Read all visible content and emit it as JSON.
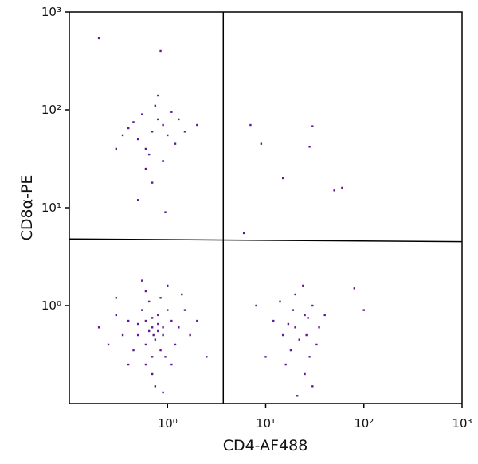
{
  "chart_data": {
    "type": "scatter",
    "x_label": "CD4-AF488",
    "y_label": "CD8α-PE",
    "log_x": true,
    "log_y": true,
    "xlim": [
      0.1,
      1000
    ],
    "ylim": [
      0.1,
      1000
    ],
    "xticks": [
      {
        "value": 1,
        "label": "10⁰"
      },
      {
        "value": 10,
        "label": "10¹"
      },
      {
        "value": 100,
        "label": "10²"
      },
      {
        "value": 1000,
        "label": "10³"
      }
    ],
    "yticks": [
      {
        "value": 1,
        "label": "10⁰"
      },
      {
        "value": 10,
        "label": "10¹"
      },
      {
        "value": 100,
        "label": "10²"
      },
      {
        "value": 1000,
        "label": "10³"
      }
    ],
    "color": "#5e1a96",
    "gates": {
      "x": 3.7,
      "y_left": 4.8,
      "y_right": 4.5
    },
    "x": [
      0.7,
      0.5,
      0.8,
      0.6,
      0.9,
      1.1,
      0.4,
      0.7,
      0.55,
      0.75,
      1.3,
      0.35,
      0.65,
      0.85,
      0.6,
      1.0,
      0.45,
      0.8,
      0.7,
      1.2,
      0.5,
      0.95,
      0.3,
      1.5,
      0.6,
      0.85,
      0.4,
      0.7,
      1.1,
      1.7,
      0.25,
      2.0,
      0.55,
      1.0,
      0.75,
      0.9,
      0.3,
      2.5,
      0.2,
      1.4,
      0.65,
      0.8,
      0.6,
      0.72,
      0.9,
      0.7,
      0.5,
      0.9,
      0.6,
      0.8,
      1.0,
      0.4,
      1.2,
      0.65,
      0.55,
      0.75,
      0.35,
      1.5,
      0.9,
      0.45,
      1.1,
      0.8,
      0.3,
      0.6,
      1.3,
      2.0,
      0.7,
      0.5,
      0.95,
      0.2,
      0.85,
      20,
      25,
      15,
      30,
      18,
      22,
      28,
      12,
      35,
      20,
      25,
      16,
      30,
      24,
      14,
      19,
      26,
      33,
      10,
      40,
      8,
      21,
      17,
      27,
      7,
      9,
      15,
      30,
      60,
      28,
      100,
      80,
      6,
      50
    ],
    "values": [
      0.6,
      0.5,
      0.8,
      0.4,
      0.5,
      0.7,
      0.7,
      0.3,
      0.9,
      0.45,
      0.6,
      0.5,
      1.1,
      0.35,
      0.25,
      0.9,
      0.35,
      0.55,
      0.75,
      0.4,
      0.65,
      0.3,
      0.8,
      0.9,
      1.4,
      1.2,
      0.25,
      0.2,
      0.25,
      0.5,
      0.4,
      0.7,
      1.8,
      1.6,
      0.15,
      0.13,
      1.2,
      0.3,
      0.6,
      1.3,
      0.55,
      0.65,
      0.7,
      0.5,
      0.6,
      60,
      50,
      70,
      40,
      80,
      55,
      65,
      45,
      35,
      90,
      110,
      55,
      60,
      30,
      75,
      95,
      140,
      40,
      25,
      80,
      70,
      18,
      12,
      9,
      540,
      400,
      0.6,
      0.8,
      0.5,
      1.0,
      0.35,
      0.45,
      0.3,
      0.7,
      0.6,
      1.3,
      0.2,
      0.25,
      0.15,
      1.6,
      1.1,
      0.9,
      0.5,
      0.4,
      0.3,
      0.8,
      1.0,
      0.12,
      0.65,
      0.75,
      70,
      45,
      20,
      68,
      16,
      42,
      0.9,
      1.5,
      5.5,
      15
    ]
  }
}
